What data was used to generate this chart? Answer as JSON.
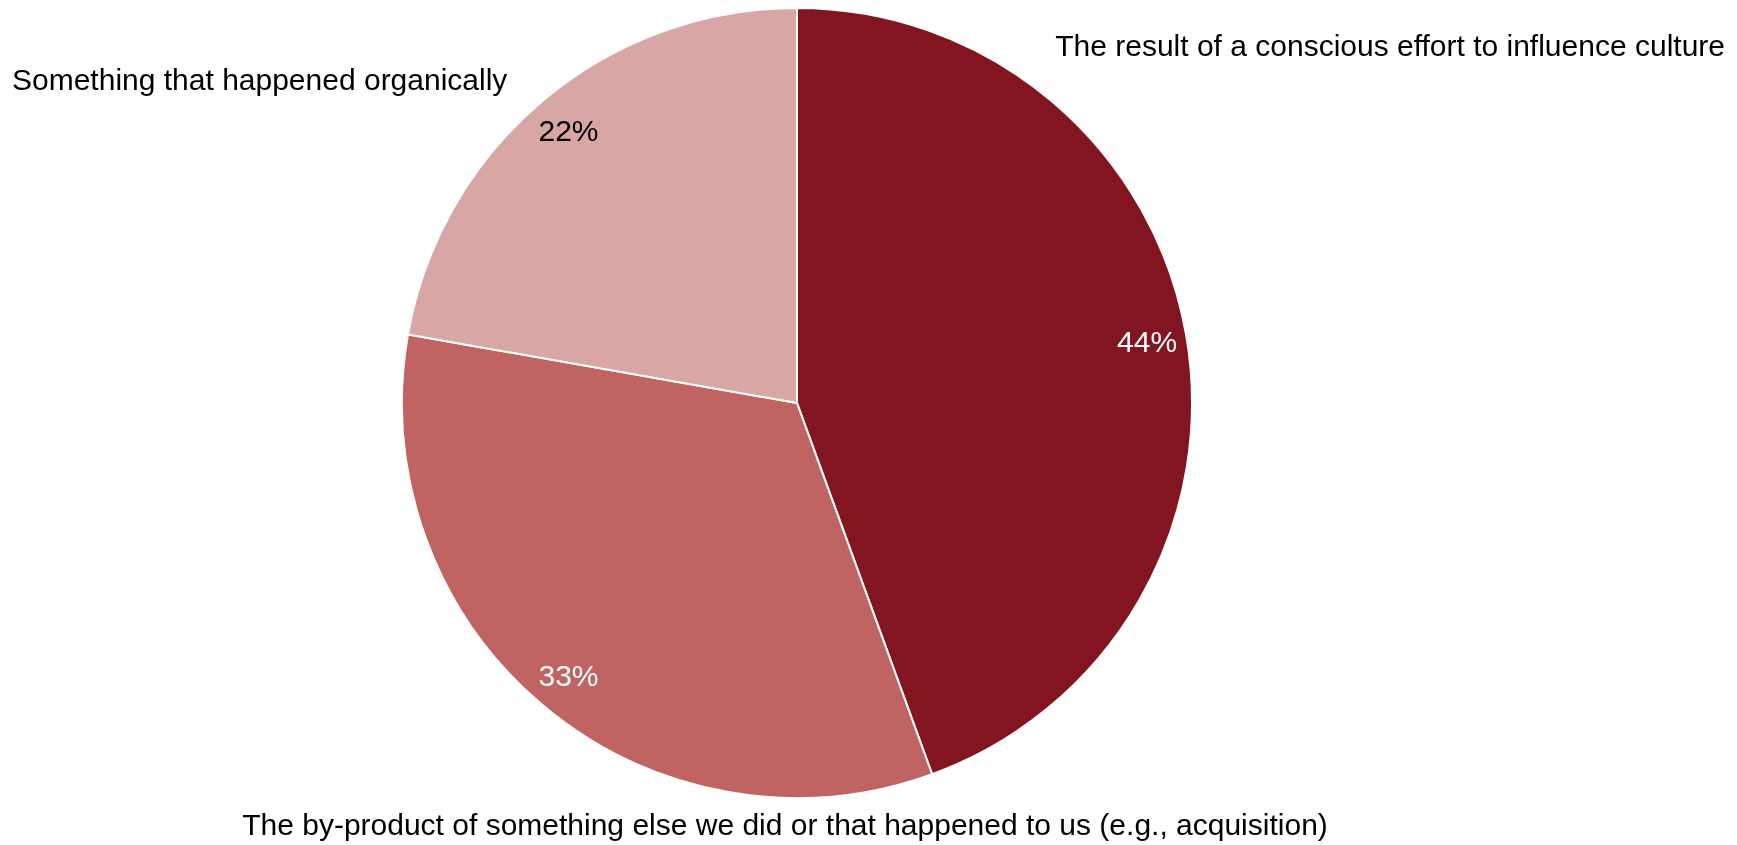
{
  "chart_data": {
    "type": "pie",
    "categories": [
      "The result of a conscious effort to influence culture",
      "The by-product of something else we did or that happened to us (e.g., acquisition)",
      "Something that happened organically"
    ],
    "values": [
      44,
      33,
      22
    ],
    "colors": [
      "#831520",
      "#bf6462",
      "#d9a6a6"
    ],
    "value_labels": [
      "44%",
      "33%",
      "22%"
    ]
  }
}
